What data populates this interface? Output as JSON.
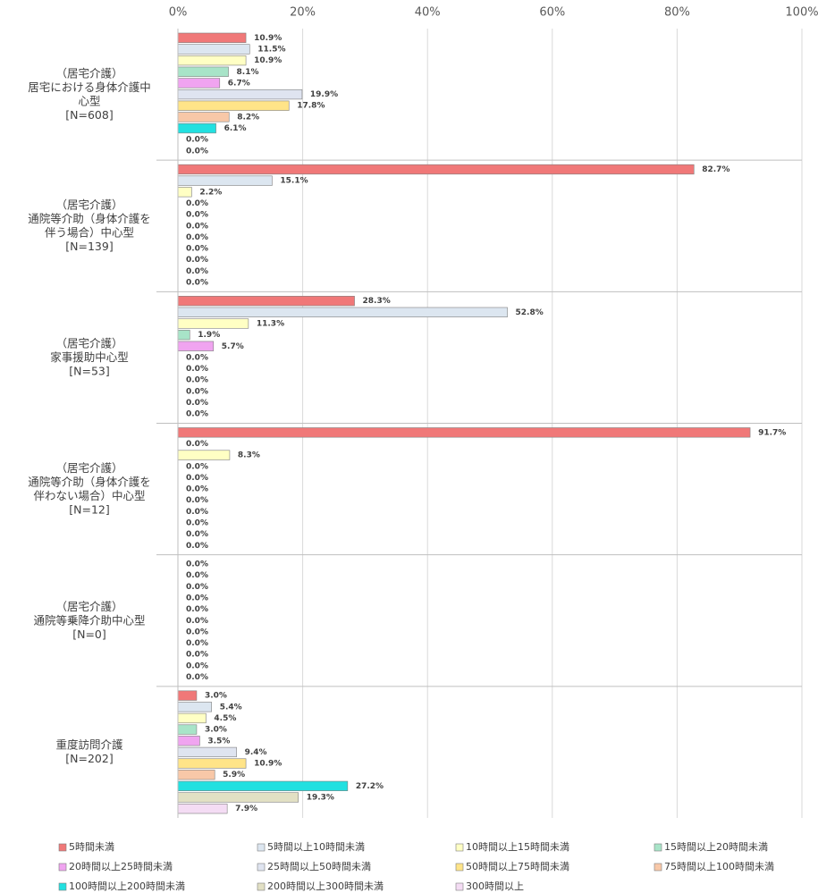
{
  "chart_data": {
    "type": "bar",
    "orientation": "horizontal",
    "categories": [
      "（居宅介護）\n居宅における身体介護中\n心型\n[N=608]",
      "（居宅介護）\n通院等介助（身体介護を\n伴う場合）中心型\n[N=139]",
      "（居宅介護）\n家事援助中心型\n[N=53]",
      "（居宅介護）\n通院等介助（身体介護を\n伴わない場合）中心型\n[N=12]",
      "（居宅介護）\n通院等乗降介助中心型\n[N=0]",
      "重度訪問介護\n[N=202]"
    ],
    "xlim": [
      0,
      100
    ],
    "xticks": [
      {
        "value": 0,
        "label": "0%"
      },
      {
        "value": 20,
        "label": "20%"
      },
      {
        "value": 40,
        "label": "40%"
      },
      {
        "value": 60,
        "label": "60%"
      },
      {
        "value": 80,
        "label": "80%"
      },
      {
        "value": 100,
        "label": "100%"
      }
    ],
    "grid": true,
    "series": [
      {
        "name": "5時間未満",
        "color": "#f07878",
        "values": [
          10.9,
          82.7,
          28.3,
          91.7,
          0.0,
          3.0
        ],
        "value_labels": [
          "10.9%",
          "82.7%",
          "28.3%",
          "91.7%",
          "0.0%",
          "3.0%"
        ]
      },
      {
        "name": "5時間以上10時間未満",
        "color": "#dce6f0",
        "values": [
          11.5,
          15.1,
          52.8,
          0.0,
          0.0,
          5.4
        ],
        "value_labels": [
          "11.5%",
          "15.1%",
          "52.8%",
          "0.0%",
          "0.0%",
          "5.4%"
        ]
      },
      {
        "name": "10時間以上15時間未満",
        "color": "#ffffc4",
        "values": [
          10.9,
          2.2,
          11.3,
          8.3,
          0.0,
          4.5
        ],
        "value_labels": [
          "10.9%",
          "2.2%",
          "11.3%",
          "8.3%",
          "0.0%",
          "4.5%"
        ]
      },
      {
        "name": "15時間以上20時間未満",
        "color": "#a8e4c8",
        "values": [
          8.1,
          0.0,
          1.9,
          0.0,
          0.0,
          3.0
        ],
        "value_labels": [
          "8.1%",
          "0.0%",
          "1.9%",
          "0.0%",
          "0.0%",
          "3.0%"
        ]
      },
      {
        "name": "20時間以上25時間未満",
        "color": "#f0a4f0",
        "values": [
          6.7,
          0.0,
          5.7,
          0.0,
          0.0,
          3.5
        ],
        "value_labels": [
          "6.7%",
          "0.0%",
          "5.7%",
          "0.0%",
          "0.0%",
          "3.5%"
        ]
      },
      {
        "name": "25時間以上50時間未満",
        "color": "#dfe4f0",
        "values": [
          19.9,
          0.0,
          0.0,
          0.0,
          0.0,
          9.4
        ],
        "value_labels": [
          "19.9%",
          "0.0%",
          "0.0%",
          "0.0%",
          "0.0%",
          "9.4%"
        ]
      },
      {
        "name": "50時間以上75時間未満",
        "color": "#ffe488",
        "values": [
          17.8,
          0.0,
          0.0,
          0.0,
          0.0,
          10.9
        ],
        "value_labels": [
          "17.8%",
          "0.0%",
          "0.0%",
          "0.0%",
          "0.0%",
          "10.9%"
        ]
      },
      {
        "name": "75時間以上100時間未満",
        "color": "#f8c8a8",
        "values": [
          8.2,
          0.0,
          0.0,
          0.0,
          0.0,
          5.9
        ],
        "value_labels": [
          "8.2%",
          "0.0%",
          "0.0%",
          "0.0%",
          "0.0%",
          "5.9%"
        ]
      },
      {
        "name": "100時間以上200時間未満",
        "color": "#22e0e0",
        "values": [
          6.1,
          0.0,
          0.0,
          0.0,
          0.0,
          27.2
        ],
        "value_labels": [
          "6.1%",
          "0.0%",
          "0.0%",
          "0.0%",
          "0.0%",
          "27.2%"
        ]
      },
      {
        "name": "200時間以上300時間未満",
        "color": "#e2e0c4",
        "values": [
          0.0,
          0.0,
          0.0,
          0.0,
          0.0,
          19.3
        ],
        "value_labels": [
          "0.0%",
          "0.0%",
          "0.0%",
          "0.0%",
          "0.0%",
          "19.3%"
        ]
      },
      {
        "name": "300時間以上",
        "color": "#f4dcf4",
        "values": [
          0.0,
          0.0,
          0.0,
          0.0,
          0.0,
          7.9
        ],
        "value_labels": [
          "0.0%",
          "0.0%",
          "0.0%",
          "0.0%",
          "0.0%",
          "7.9%"
        ]
      }
    ]
  }
}
